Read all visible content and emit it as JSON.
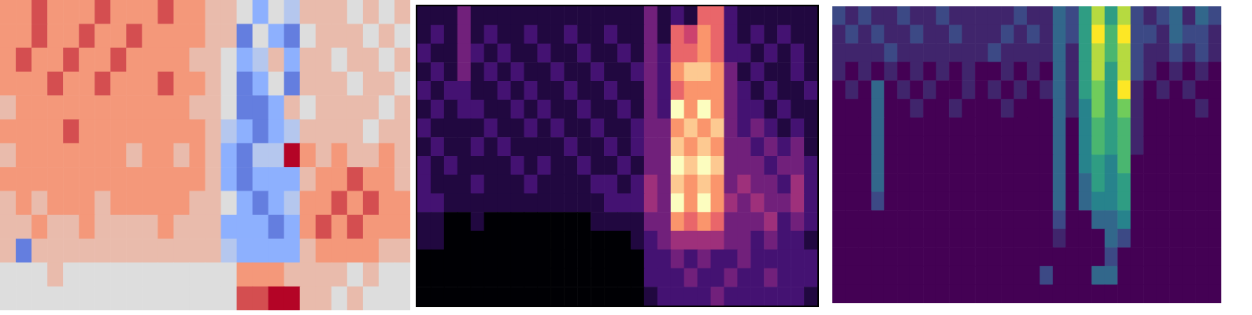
{
  "chart_data": [
    {
      "type": "heatmap",
      "color": "coolwarm",
      "tick_labels": false,
      "value_range": [
        -4,
        4
      ],
      "cells": [
        [
          2,
          2,
          3,
          2,
          2,
          2,
          3,
          2,
          2,
          2,
          3,
          2,
          2,
          1,
          1,
          0,
          -2,
          0,
          -1,
          1,
          1,
          1,
          0,
          1,
          0,
          1
        ],
        [
          2,
          2,
          3,
          2,
          2,
          3,
          2,
          2,
          3,
          2,
          2,
          2,
          2,
          1,
          1,
          -3,
          0,
          -2,
          -3,
          0,
          1,
          1,
          1,
          0,
          1,
          0
        ],
        [
          2,
          3,
          2,
          2,
          3,
          2,
          2,
          3,
          2,
          2,
          2,
          2,
          1,
          1,
          0,
          -2,
          -1,
          1,
          -2,
          1,
          1,
          0,
          1,
          1,
          0,
          1
        ],
        [
          2,
          2,
          2,
          3,
          2,
          2,
          3,
          2,
          2,
          2,
          3,
          2,
          2,
          1,
          0,
          -3,
          -2,
          0,
          -3,
          1,
          1,
          1,
          0,
          1,
          1,
          0
        ],
        [
          1,
          2,
          2,
          2,
          2,
          2,
          2,
          2,
          2,
          2,
          2,
          2,
          1,
          1,
          0,
          -3,
          -3,
          -2,
          1,
          0,
          1,
          1,
          1,
          1,
          0,
          1
        ],
        [
          2,
          2,
          2,
          2,
          3,
          2,
          2,
          2,
          2,
          2,
          2,
          2,
          2,
          1,
          -1,
          -2,
          -3,
          -2,
          -1,
          1,
          1,
          1,
          1,
          0,
          1,
          1
        ],
        [
          1,
          2,
          2,
          2,
          2,
          2,
          2,
          2,
          1,
          2,
          2,
          1,
          2,
          1,
          -2,
          -3,
          -1,
          -1,
          4,
          2,
          1,
          2,
          1,
          1,
          2,
          1
        ],
        [
          2,
          2,
          2,
          2,
          2,
          2,
          2,
          2,
          2,
          2,
          2,
          2,
          2,
          1,
          -2,
          -3,
          -2,
          -2,
          -2,
          1,
          2,
          2,
          3,
          2,
          2,
          1
        ],
        [
          1,
          2,
          1,
          2,
          2,
          2,
          1,
          2,
          2,
          2,
          2,
          2,
          1,
          1,
          0,
          -2,
          -3,
          -2,
          -1,
          2,
          2,
          3,
          2,
          3,
          2,
          2
        ],
        [
          1,
          1,
          2,
          1,
          1,
          2,
          1,
          1,
          1,
          1,
          2,
          1,
          1,
          1,
          -2,
          -2,
          -2,
          -3,
          -2,
          2,
          3,
          2,
          3,
          2,
          2,
          2
        ],
        [
          1,
          -3,
          1,
          1,
          1,
          1,
          1,
          1,
          1,
          1,
          1,
          1,
          1,
          1,
          -1,
          -2,
          -2,
          -2,
          -2,
          1,
          2,
          2,
          2,
          2,
          1,
          1
        ],
        [
          0,
          0,
          0,
          1,
          0,
          0,
          0,
          0,
          0,
          0,
          0,
          0,
          0,
          0,
          0,
          2,
          2,
          2,
          1,
          1,
          1,
          1,
          0,
          1,
          0,
          0
        ],
        [
          0,
          0,
          0,
          0,
          0,
          0,
          0,
          0,
          0,
          0,
          0,
          0,
          0,
          0,
          0,
          3,
          3,
          4,
          4,
          1,
          1,
          0,
          1,
          0,
          0,
          0
        ]
      ]
    },
    {
      "type": "heatmap",
      "color": "magma",
      "tick_labels": false,
      "value_range": [
        0,
        9
      ],
      "cells": [
        [
          1,
          1,
          1,
          3,
          1,
          1,
          1,
          1,
          1,
          1,
          1,
          1,
          1,
          1,
          1,
          1,
          1,
          3,
          1,
          2,
          1,
          6,
          6,
          2,
          1,
          1,
          1,
          1,
          1,
          1
        ],
        [
          1,
          2,
          1,
          3,
          1,
          2,
          1,
          1,
          2,
          1,
          1,
          2,
          1,
          1,
          2,
          1,
          1,
          3,
          1,
          6,
          5,
          7,
          6,
          2,
          1,
          2,
          1,
          2,
          1,
          1
        ],
        [
          2,
          1,
          1,
          3,
          2,
          1,
          2,
          1,
          1,
          2,
          1,
          1,
          2,
          1,
          1,
          2,
          1,
          3,
          2,
          6,
          6,
          7,
          6,
          2,
          2,
          1,
          2,
          1,
          2,
          1
        ],
        [
          1,
          2,
          1,
          3,
          1,
          2,
          1,
          2,
          1,
          1,
          2,
          1,
          1,
          2,
          1,
          1,
          2,
          3,
          2,
          7,
          8,
          8,
          7,
          3,
          1,
          2,
          1,
          1,
          2,
          1
        ],
        [
          2,
          1,
          2,
          2,
          1,
          1,
          2,
          1,
          2,
          1,
          1,
          2,
          1,
          1,
          2,
          1,
          1,
          3,
          2,
          6,
          7,
          7,
          7,
          3,
          2,
          1,
          2,
          1,
          1,
          2
        ],
        [
          1,
          2,
          1,
          2,
          2,
          1,
          1,
          2,
          1,
          2,
          1,
          1,
          2,
          1,
          1,
          2,
          1,
          3,
          2,
          9,
          7,
          9,
          7,
          3,
          2,
          2,
          1,
          2,
          1,
          1
        ],
        [
          2,
          1,
          1,
          1,
          1,
          2,
          1,
          1,
          2,
          1,
          2,
          1,
          1,
          2,
          1,
          1,
          2,
          3,
          3,
          7,
          8,
          7,
          8,
          3,
          2,
          3,
          2,
          1,
          2,
          1
        ],
        [
          1,
          2,
          1,
          1,
          2,
          1,
          2,
          1,
          1,
          1,
          1,
          2,
          1,
          1,
          2,
          1,
          2,
          3,
          3,
          8,
          7,
          8,
          7,
          3,
          3,
          2,
          3,
          2,
          3,
          1
        ],
        [
          2,
          1,
          2,
          1,
          1,
          1,
          1,
          2,
          1,
          2,
          1,
          1,
          2,
          1,
          1,
          2,
          1,
          3,
          3,
          9,
          8,
          9,
          8,
          3,
          3,
          3,
          2,
          3,
          3,
          2
        ],
        [
          2,
          1,
          1,
          1,
          2,
          1,
          1,
          1,
          2,
          1,
          1,
          1,
          1,
          2,
          2,
          1,
          2,
          4,
          3,
          8,
          7,
          8,
          7,
          3,
          4,
          3,
          3,
          2,
          4,
          2
        ],
        [
          2,
          2,
          1,
          1,
          1,
          1,
          1,
          1,
          1,
          1,
          1,
          1,
          1,
          1,
          2,
          2,
          2,
          4,
          3,
          9,
          7,
          9,
          7,
          4,
          3,
          4,
          3,
          3,
          4,
          2
        ],
        [
          1,
          1,
          0,
          0,
          1,
          0,
          0,
          0,
          0,
          0,
          0,
          0,
          0,
          1,
          1,
          1,
          1,
          3,
          3,
          7,
          6,
          7,
          6,
          3,
          3,
          3,
          4,
          2,
          3,
          2
        ],
        [
          1,
          1,
          0,
          0,
          0,
          0,
          0,
          0,
          0,
          0,
          0,
          0,
          0,
          0,
          0,
          0,
          1,
          2,
          3,
          4,
          4,
          4,
          4,
          3,
          3,
          2,
          3,
          2,
          2,
          1
        ],
        [
          0,
          0,
          0,
          0,
          0,
          0,
          0,
          0,
          0,
          0,
          0,
          0,
          0,
          0,
          0,
          0,
          0,
          2,
          2,
          3,
          2,
          3,
          2,
          2,
          3,
          2,
          2,
          2,
          2,
          2
        ],
        [
          0,
          0,
          0,
          0,
          0,
          0,
          0,
          0,
          0,
          0,
          0,
          0,
          0,
          0,
          0,
          0,
          0,
          2,
          2,
          2,
          3,
          2,
          2,
          3,
          2,
          2,
          3,
          2,
          2,
          2
        ],
        [
          0,
          0,
          0,
          0,
          0,
          0,
          0,
          0,
          0,
          0,
          0,
          0,
          0,
          0,
          0,
          0,
          0,
          1,
          2,
          2,
          2,
          2,
          3,
          2,
          2,
          2,
          2,
          2,
          2,
          1
        ]
      ]
    },
    {
      "type": "heatmap",
      "color": "viridis",
      "tick_labels": false,
      "value_range": [
        0,
        9
      ],
      "cells": [
        [
          2,
          1,
          2,
          1,
          1,
          2,
          1,
          1,
          2,
          1,
          1,
          1,
          1,
          1,
          2,
          1,
          1,
          3,
          2,
          5,
          8,
          5,
          8,
          2,
          1,
          2,
          3,
          1,
          3,
          2
        ],
        [
          1,
          2,
          1,
          2,
          1,
          1,
          2,
          1,
          1,
          2,
          1,
          1,
          1,
          2,
          1,
          2,
          1,
          3,
          2,
          5,
          9,
          6,
          9,
          2,
          2,
          1,
          3,
          2,
          2,
          1
        ],
        [
          1,
          1,
          1,
          1,
          2,
          1,
          1,
          1,
          1,
          1,
          1,
          1,
          2,
          1,
          1,
          1,
          1,
          3,
          1,
          5,
          8,
          6,
          8,
          2,
          1,
          1,
          2,
          1,
          2,
          1
        ],
        [
          1,
          0,
          1,
          0,
          1,
          0,
          1,
          0,
          1,
          0,
          1,
          0,
          0,
          1,
          0,
          1,
          0,
          3,
          1,
          5,
          8,
          5,
          8,
          2,
          1,
          0,
          1,
          0,
          1,
          0
        ],
        [
          0,
          1,
          0,
          3,
          0,
          1,
          0,
          1,
          0,
          0,
          1,
          0,
          1,
          0,
          1,
          0,
          1,
          3,
          1,
          5,
          7,
          5,
          9,
          1,
          0,
          1,
          0,
          1,
          0,
          0
        ],
        [
          0,
          0,
          0,
          3,
          0,
          0,
          1,
          0,
          0,
          1,
          0,
          0,
          0,
          1,
          0,
          0,
          0,
          3,
          1,
          4,
          7,
          5,
          7,
          1,
          0,
          0,
          0,
          0,
          1,
          0
        ],
        [
          0,
          0,
          0,
          3,
          0,
          0,
          0,
          0,
          0,
          0,
          0,
          0,
          0,
          0,
          0,
          0,
          0,
          3,
          0,
          4,
          6,
          5,
          6,
          1,
          0,
          0,
          0,
          0,
          0,
          0
        ],
        [
          0,
          0,
          0,
          3,
          0,
          0,
          0,
          0,
          0,
          0,
          0,
          0,
          0,
          0,
          0,
          0,
          0,
          3,
          0,
          4,
          6,
          5,
          6,
          1,
          0,
          0,
          0,
          0,
          0,
          0
        ],
        [
          0,
          0,
          0,
          3,
          0,
          0,
          0,
          0,
          0,
          0,
          0,
          0,
          0,
          0,
          0,
          0,
          0,
          3,
          0,
          4,
          5,
          4,
          6,
          0,
          0,
          0,
          0,
          0,
          0,
          0
        ],
        [
          0,
          0,
          0,
          3,
          0,
          0,
          0,
          0,
          0,
          0,
          0,
          0,
          0,
          0,
          0,
          0,
          0,
          3,
          0,
          3,
          5,
          4,
          5,
          0,
          0,
          0,
          0,
          0,
          0,
          0
        ],
        [
          0,
          0,
          0,
          2,
          0,
          0,
          0,
          0,
          0,
          0,
          0,
          0,
          0,
          0,
          0,
          0,
          0,
          3,
          0,
          3,
          4,
          4,
          5,
          0,
          0,
          0,
          0,
          0,
          0,
          0
        ],
        [
          0,
          0,
          0,
          0,
          0,
          0,
          0,
          0,
          0,
          0,
          0,
          0,
          0,
          0,
          0,
          0,
          0,
          2,
          0,
          0,
          3,
          3,
          4,
          0,
          0,
          0,
          0,
          0,
          0,
          0
        ],
        [
          0,
          0,
          0,
          0,
          0,
          0,
          0,
          0,
          0,
          0,
          0,
          0,
          0,
          0,
          0,
          0,
          0,
          1,
          0,
          0,
          0,
          3,
          2,
          0,
          0,
          0,
          0,
          0,
          0,
          0
        ],
        [
          0,
          0,
          0,
          0,
          0,
          0,
          0,
          0,
          0,
          0,
          0,
          0,
          0,
          0,
          0,
          0,
          0,
          0,
          0,
          0,
          0,
          2,
          0,
          0,
          0,
          0,
          0,
          0,
          0,
          0
        ],
        [
          0,
          0,
          0,
          0,
          0,
          0,
          0,
          0,
          0,
          0,
          0,
          0,
          0,
          0,
          0,
          0,
          2,
          0,
          0,
          0,
          3,
          3,
          0,
          0,
          0,
          0,
          0,
          0,
          0,
          0
        ],
        [
          0,
          0,
          0,
          0,
          0,
          0,
          0,
          0,
          0,
          0,
          0,
          0,
          0,
          0,
          0,
          0,
          0,
          0,
          0,
          0,
          0,
          0,
          0,
          0,
          0,
          0,
          0,
          0,
          0,
          0
        ]
      ]
    }
  ]
}
